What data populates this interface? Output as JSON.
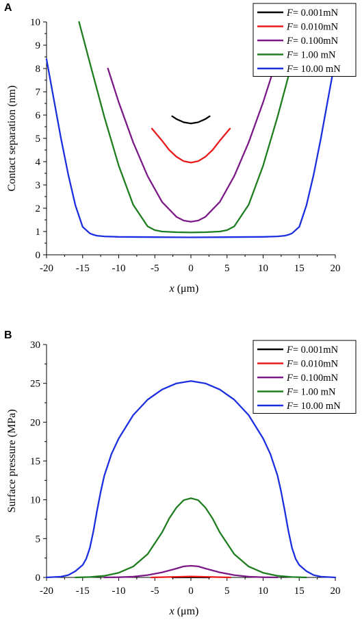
{
  "chart_data": [
    {
      "panel": "A",
      "type": "line",
      "xlabel_var": "x",
      "xlabel_unit": "(μm)",
      "ylabel": "Contact separation (nm)",
      "xlim": [
        -20,
        20
      ],
      "ylim": [
        0,
        10
      ],
      "xticks": [
        -20,
        -15,
        -10,
        -5,
        0,
        5,
        10,
        15,
        20
      ],
      "yticks": [
        0,
        1,
        2,
        3,
        4,
        5,
        6,
        7,
        8,
        9,
        10
      ],
      "legend_position": "top-right",
      "series": [
        {
          "name_var": "F",
          "name_rest": "=  0.001mN",
          "color": "#000000",
          "x": [
            -2.6,
            -2,
            -1,
            0,
            1,
            2,
            2.6
          ],
          "y": [
            5.95,
            5.83,
            5.69,
            5.64,
            5.69,
            5.83,
            5.95
          ]
        },
        {
          "name_var": "F",
          "name_rest": "=  0.010mN",
          "color": "#e8191b",
          "x": [
            -5.4,
            -4,
            -3,
            -2,
            -1,
            0,
            1,
            2,
            3,
            4,
            5.4
          ],
          "y": [
            5.42,
            4.9,
            4.5,
            4.21,
            4.02,
            3.96,
            4.02,
            4.21,
            4.5,
            4.9,
            5.42
          ]
        },
        {
          "name_var": "F",
          "name_rest": "=  0.100mN",
          "color": "#7b1a87",
          "x": [
            -11.5,
            -10,
            -8,
            -6,
            -4,
            -2,
            -1,
            0,
            1,
            2,
            4,
            6,
            8,
            10,
            11.5
          ],
          "y": [
            8.0,
            6.55,
            4.83,
            3.38,
            2.27,
            1.63,
            1.47,
            1.42,
            1.47,
            1.63,
            2.27,
            3.38,
            4.83,
            6.55,
            8.0
          ]
        },
        {
          "name_var": "F",
          "name_rest": "=  1.00  mN",
          "color": "#1e7d1e",
          "x": [
            -15.5,
            -14,
            -12,
            -10,
            -8,
            -6,
            -5,
            -4,
            -2,
            0,
            2,
            4,
            5,
            6,
            8,
            10,
            12,
            14,
            15.5
          ],
          "y": [
            10.0,
            8.24,
            5.93,
            3.83,
            2.15,
            1.22,
            1.06,
            1.0,
            0.97,
            0.96,
            0.97,
            1.0,
            1.06,
            1.22,
            2.15,
            3.83,
            5.93,
            8.24,
            10.0
          ]
        },
        {
          "name_var": "F",
          "name_rest": "= 10.00   mN",
          "color": "#1c2fe0",
          "x": [
            -20,
            -19,
            -18,
            -17,
            -16,
            -15,
            -14,
            -13.5,
            -13,
            -12,
            -10,
            -5,
            0,
            5,
            10,
            12,
            13,
            13.5,
            14,
            15,
            16,
            17,
            18,
            19,
            20
          ],
          "y": [
            8.4,
            6.7,
            5.0,
            3.45,
            2.12,
            1.2,
            0.92,
            0.86,
            0.82,
            0.79,
            0.77,
            0.76,
            0.75,
            0.76,
            0.77,
            0.79,
            0.82,
            0.86,
            0.92,
            1.2,
            2.12,
            3.45,
            5.0,
            6.7,
            8.4
          ]
        }
      ]
    },
    {
      "panel": "B",
      "type": "line",
      "xlabel_var": "x",
      "xlabel_unit": "(μm)",
      "ylabel": "Surface pressure (MPa)",
      "xlim": [
        -20,
        20
      ],
      "ylim": [
        0,
        30
      ],
      "xticks": [
        -20,
        -15,
        -10,
        -5,
        0,
        5,
        10,
        15,
        20
      ],
      "yticks": [
        0,
        5,
        10,
        15,
        20,
        25,
        30
      ],
      "legend_position": "top-right",
      "series": [
        {
          "name_var": "F",
          "name_rest": "=  0.001mN",
          "color": "#000000",
          "x": [
            -2.6,
            0,
            2.6
          ],
          "y": [
            0.0,
            0.01,
            0.0
          ]
        },
        {
          "name_var": "F",
          "name_rest": "=  0.010mN",
          "color": "#e8191b",
          "x": [
            -5.5,
            -3,
            -1,
            0,
            1,
            3,
            5.5
          ],
          "y": [
            0.0,
            0.05,
            0.1,
            0.12,
            0.1,
            0.05,
            0.0
          ]
        },
        {
          "name_var": "F",
          "name_rest": "=  0.100mN",
          "color": "#7b1a87",
          "x": [
            -12,
            -10,
            -8,
            -6,
            -4,
            -2,
            -1,
            0,
            1,
            2,
            4,
            6,
            8,
            10,
            12
          ],
          "y": [
            0.0,
            0.03,
            0.1,
            0.3,
            0.65,
            1.15,
            1.42,
            1.5,
            1.42,
            1.15,
            0.65,
            0.3,
            0.1,
            0.03,
            0.0
          ]
        },
        {
          "name_var": "F",
          "name_rest": "=  1.00  mN",
          "color": "#1e7d1e",
          "x": [
            -16,
            -14,
            -12,
            -10,
            -8,
            -6,
            -4,
            -3,
            -2,
            -1,
            0,
            1,
            2,
            3,
            4,
            6,
            8,
            10,
            12,
            14,
            16
          ],
          "y": [
            0.0,
            0.05,
            0.2,
            0.6,
            1.4,
            3.0,
            5.8,
            7.6,
            9.0,
            9.95,
            10.2,
            9.95,
            9.0,
            7.6,
            5.8,
            3.0,
            1.4,
            0.6,
            0.2,
            0.05,
            0.0
          ]
        },
        {
          "name_var": "F",
          "name_rest": "= 10.00   mN",
          "color": "#1c2fe0",
          "x": [
            -20,
            -18,
            -17,
            -16,
            -15,
            -14.5,
            -14,
            -13.5,
            -13,
            -12.5,
            -12,
            -11,
            -10,
            -8,
            -6,
            -4,
            -2,
            0,
            2,
            4,
            6,
            8,
            10,
            11,
            12,
            12.5,
            13,
            13.5,
            14,
            14.5,
            15,
            16,
            17,
            18,
            20
          ],
          "y": [
            0.0,
            0.1,
            0.3,
            0.8,
            1.6,
            2.4,
            3.8,
            6.0,
            8.6,
            11.0,
            13.1,
            15.9,
            17.9,
            20.9,
            22.9,
            24.2,
            25.0,
            25.3,
            25.0,
            24.2,
            22.9,
            20.9,
            17.9,
            15.9,
            13.1,
            11.0,
            8.6,
            6.0,
            3.8,
            2.4,
            1.6,
            0.8,
            0.3,
            0.1,
            0.0
          ]
        }
      ]
    }
  ]
}
